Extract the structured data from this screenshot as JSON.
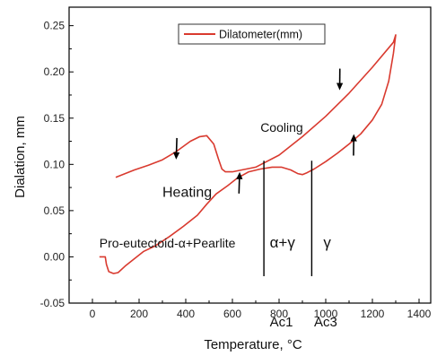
{
  "chart_data": {
    "type": "line",
    "title": "",
    "xlabel": "Temperature, °C",
    "ylabel": "Dialation, mm",
    "xlim": [
      -100,
      1450
    ],
    "ylim": [
      -0.05,
      0.27
    ],
    "xticks": [
      0,
      200,
      400,
      600,
      800,
      1000,
      1200,
      1400
    ],
    "yticks": [
      -0.05,
      0.0,
      0.05,
      0.1,
      0.15,
      0.2,
      0.25
    ],
    "ytick_labels": [
      "-0.05",
      "0.00",
      "0.05",
      "0.10",
      "0.15",
      "0.20",
      "0.25"
    ],
    "legend": {
      "entries": [
        "Dilatometer(mm)"
      ],
      "placement": "top-center"
    },
    "color": "#d93a2f",
    "series": [
      {
        "name": "Dilatometer(mm)",
        "x": [
          30,
          55,
          60,
          70,
          90,
          110,
          140,
          180,
          220,
          270,
          330,
          390,
          450,
          490,
          530,
          580,
          620,
          670,
          720,
          770,
          810,
          850,
          880,
          900,
          920,
          950,
          1000,
          1050,
          1100,
          1150,
          1200,
          1240,
          1270,
          1290,
          1300,
          1290,
          1200,
          1100,
          1000,
          900,
          800,
          700,
          600,
          570,
          555,
          540,
          520,
          490,
          460,
          420,
          360,
          300,
          240,
          180,
          140,
          100
        ],
        "y": [
          0.0,
          0.0,
          -0.008,
          -0.016,
          -0.018,
          -0.017,
          -0.01,
          -0.002,
          0.006,
          0.012,
          0.022,
          0.033,
          0.045,
          0.057,
          0.068,
          0.077,
          0.085,
          0.092,
          0.095,
          0.097,
          0.097,
          0.094,
          0.09,
          0.089,
          0.091,
          0.095,
          0.103,
          0.112,
          0.122,
          0.133,
          0.148,
          0.165,
          0.19,
          0.22,
          0.24,
          0.232,
          0.205,
          0.177,
          0.152,
          0.13,
          0.11,
          0.097,
          0.092,
          0.092,
          0.095,
          0.106,
          0.122,
          0.131,
          0.13,
          0.125,
          0.114,
          0.105,
          0.099,
          0.094,
          0.09,
          0.086
        ]
      }
    ],
    "arrows": [
      {
        "x": 360,
        "y": 0.113,
        "dx": -1,
        "dy": -0.008
      },
      {
        "x": 1060,
        "y": 0.188,
        "dx": -1,
        "dy": -0.026
      },
      {
        "x": 630,
        "y": 0.084,
        "dx": 1,
        "dy": 0.008
      },
      {
        "x": 1120,
        "y": 0.125,
        "dx": 1,
        "dy": 0.016
      }
    ],
    "annotations": [
      {
        "text": "Cooling",
        "x": 720,
        "y": 0.135,
        "size": 14
      },
      {
        "text": "Heating",
        "x": 300,
        "y": 0.065,
        "size": 16
      },
      {
        "text": "Pro-eutectoid-α+Pearlite",
        "x": 30,
        "y": 0.01,
        "size": 14
      },
      {
        "text": "α+γ",
        "x": 760,
        "y": 0.01,
        "size": 17
      },
      {
        "text": "γ",
        "x": 990,
        "y": 0.01,
        "size": 17
      },
      {
        "text": "Ac1",
        "x": 760,
        "y": -0.075,
        "size": 15
      },
      {
        "text": "Ac3",
        "x": 950,
        "y": -0.075,
        "size": 15
      }
    ],
    "vlines": [
      {
        "name": "Ac1",
        "x": 735,
        "y_top": 0.104,
        "y_bottom": -0.05
      },
      {
        "name": "Ac3",
        "x": 940,
        "y_top": 0.104,
        "y_bottom": -0.05
      }
    ]
  }
}
